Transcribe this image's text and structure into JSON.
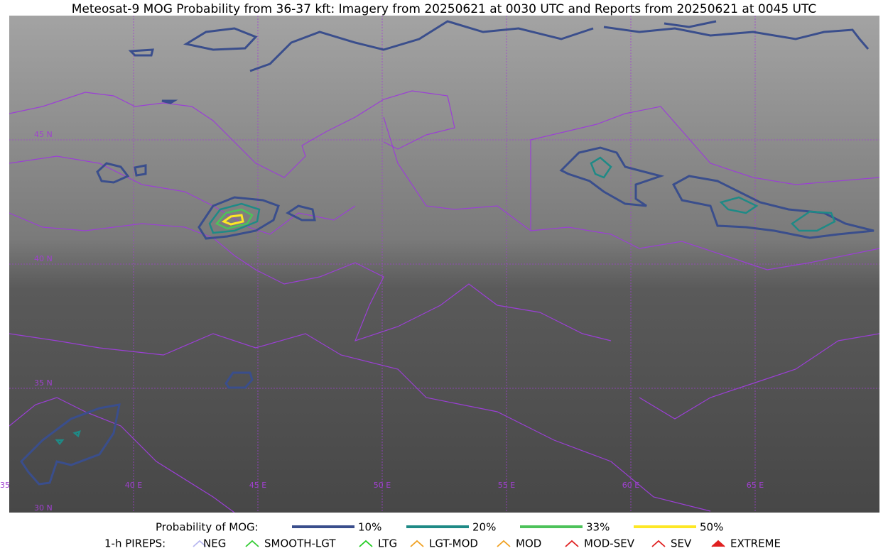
{
  "header": {
    "title": "Meteosat-9 MOG Probability from 36-37 kft: Imagery from 20250621 at 0030 UTC and Reports from 20250621 at 0045 UTC"
  },
  "map": {
    "lat_labels": [
      "45 N",
      "40 N",
      "35 N",
      "30 N"
    ],
    "lon_labels": [
      "35",
      "40 E",
      "45 E",
      "50 E",
      "55 E",
      "60 E",
      "65 E"
    ]
  },
  "legend": {
    "probability": {
      "title": "Probability of MOG:",
      "items": [
        {
          "label": "10%",
          "color": "#3a4e8c"
        },
        {
          "label": "20%",
          "color": "#1f8a86"
        },
        {
          "label": "33%",
          "color": "#4dc25a"
        },
        {
          "label": "50%",
          "color": "#fde725"
        }
      ]
    },
    "pireps": {
      "title": "1-h PIREPS:",
      "items": [
        "NEG",
        "SMOOTH-LGT",
        "LTG",
        "LGT-MOD",
        "MOD",
        "MOD-SEV",
        "SEV",
        "EXTREME"
      ]
    }
  }
}
